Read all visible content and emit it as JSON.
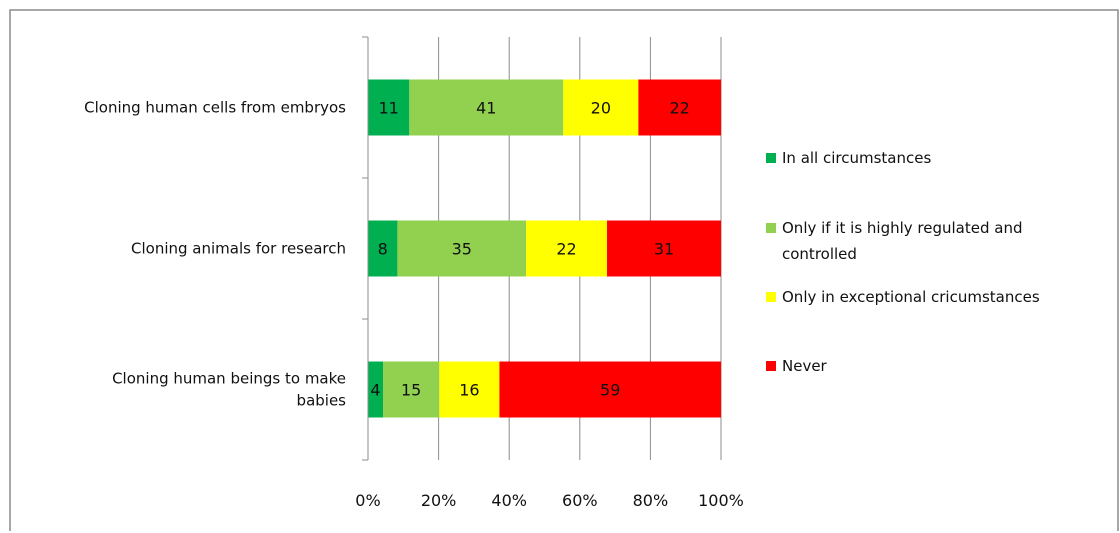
{
  "chart_data": {
    "type": "bar",
    "orientation": "horizontal",
    "stacked": "percent",
    "categories": [
      [
        "Cloning human cells from embryos"
      ],
      [
        "Cloning animals for research"
      ],
      [
        "Cloning human beings to make",
        "babies"
      ]
    ],
    "series": [
      {
        "name": "In all circumstances",
        "color": "#00b050",
        "values": [
          11,
          8,
          4
        ]
      },
      {
        "name": [
          "Only if it is highly regulated and",
          "controlled"
        ],
        "color": "#92d050",
        "values": [
          41,
          35,
          15
        ]
      },
      {
        "name": "Only in exceptional cricumstances",
        "color": "#ffff00",
        "values": [
          20,
          22,
          16
        ]
      },
      {
        "name": "Never",
        "color": "#ff0000",
        "values": [
          22,
          31,
          59
        ]
      }
    ],
    "x_ticks": [
      "0%",
      "20%",
      "40%",
      "60%",
      "80%",
      "100%"
    ],
    "xlim": [
      0,
      100
    ],
    "grid": "vertical",
    "legend": "right",
    "title": "",
    "xlabel": "",
    "ylabel": ""
  }
}
